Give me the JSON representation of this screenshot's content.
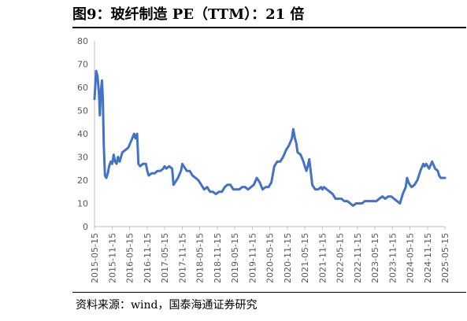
{
  "header": {
    "title": "图9：玻纤制造 PE（TTM）：21 倍"
  },
  "footer": {
    "source": "资料来源：wind，国泰海通证券研究"
  },
  "colors": {
    "line": "#4472c4",
    "axis": "#bfbfbf",
    "tick_text": "#595959"
  },
  "chart_data": {
    "type": "line",
    "title": "",
    "xlabel": "",
    "ylabel": "",
    "ylim": [
      0,
      80
    ],
    "yticks": [
      0,
      10,
      20,
      30,
      40,
      50,
      60,
      70,
      80
    ],
    "xlim": [
      "2015-05-15",
      "2025-05-15"
    ],
    "xticks": [
      "2015-05-15",
      "2015-11-15",
      "2016-05-15",
      "2016-11-15",
      "2017-05-15",
      "2017-11-15",
      "2018-05-15",
      "2018-11-15",
      "2019-05-15",
      "2019-11-15",
      "2020-05-15",
      "2020-11-15",
      "2021-05-15",
      "2021-11-15",
      "2022-05-15",
      "2022-11-15",
      "2023-05-15",
      "2023-11-15",
      "2024-05-15",
      "2024-11-15",
      "2025-05-15"
    ],
    "grid": false,
    "legend": "none",
    "series": [
      {
        "points": [
          [
            "2015-05-15",
            55
          ],
          [
            "2015-06-01",
            67
          ],
          [
            "2015-06-15",
            65
          ],
          [
            "2015-07-01",
            57
          ],
          [
            "2015-07-10",
            48
          ],
          [
            "2015-07-20",
            58
          ],
          [
            "2015-08-01",
            63
          ],
          [
            "2015-08-10",
            55
          ],
          [
            "2015-08-20",
            35
          ],
          [
            "2015-09-01",
            22
          ],
          [
            "2015-09-15",
            21
          ],
          [
            "2015-10-01",
            23
          ],
          [
            "2015-10-15",
            26
          ],
          [
            "2015-11-01",
            28
          ],
          [
            "2015-11-15",
            27
          ],
          [
            "2015-12-01",
            31
          ],
          [
            "2015-12-15",
            28
          ],
          [
            "2016-01-01",
            27
          ],
          [
            "2016-01-15",
            30
          ],
          [
            "2016-02-01",
            28
          ],
          [
            "2016-02-15",
            30
          ],
          [
            "2016-03-01",
            32
          ],
          [
            "2016-04-01",
            33
          ],
          [
            "2016-05-01",
            34
          ],
          [
            "2016-06-01",
            37
          ],
          [
            "2016-07-01",
            40
          ],
          [
            "2016-07-15",
            38
          ],
          [
            "2016-08-01",
            40
          ],
          [
            "2016-08-15",
            27
          ],
          [
            "2016-09-01",
            26
          ],
          [
            "2016-10-01",
            27
          ],
          [
            "2016-11-01",
            27
          ],
          [
            "2016-11-15",
            24
          ],
          [
            "2016-12-01",
            22
          ],
          [
            "2017-01-01",
            23
          ],
          [
            "2017-02-01",
            23
          ],
          [
            "2017-03-01",
            24
          ],
          [
            "2017-04-01",
            24
          ],
          [
            "2017-05-01",
            25
          ],
          [
            "2017-05-15",
            26
          ],
          [
            "2017-06-01",
            25
          ],
          [
            "2017-07-01",
            26
          ],
          [
            "2017-08-01",
            25
          ],
          [
            "2017-08-15",
            18
          ],
          [
            "2017-09-01",
            19
          ],
          [
            "2017-10-01",
            21
          ],
          [
            "2017-11-01",
            24
          ],
          [
            "2017-11-15",
            27
          ],
          [
            "2017-12-01",
            26
          ],
          [
            "2018-01-01",
            24
          ],
          [
            "2018-02-01",
            24
          ],
          [
            "2018-03-01",
            22
          ],
          [
            "2018-04-01",
            21
          ],
          [
            "2018-05-01",
            20
          ],
          [
            "2018-06-01",
            18
          ],
          [
            "2018-07-01",
            16
          ],
          [
            "2018-08-01",
            17
          ],
          [
            "2018-09-01",
            15
          ],
          [
            "2018-10-01",
            15
          ],
          [
            "2018-11-01",
            14
          ],
          [
            "2018-12-01",
            15
          ],
          [
            "2019-01-01",
            15
          ],
          [
            "2019-02-01",
            17
          ],
          [
            "2019-03-01",
            18
          ],
          [
            "2019-04-01",
            18
          ],
          [
            "2019-05-01",
            16
          ],
          [
            "2019-06-01",
            16
          ],
          [
            "2019-07-01",
            16
          ],
          [
            "2019-08-01",
            17
          ],
          [
            "2019-09-01",
            17
          ],
          [
            "2019-10-01",
            16
          ],
          [
            "2019-11-01",
            17
          ],
          [
            "2019-12-01",
            18
          ],
          [
            "2020-01-01",
            21
          ],
          [
            "2020-02-01",
            19
          ],
          [
            "2020-03-01",
            16
          ],
          [
            "2020-04-01",
            17
          ],
          [
            "2020-05-01",
            17
          ],
          [
            "2020-06-01",
            19
          ],
          [
            "2020-07-01",
            26
          ],
          [
            "2020-08-01",
            28
          ],
          [
            "2020-09-01",
            28
          ],
          [
            "2020-10-01",
            30
          ],
          [
            "2020-11-01",
            33
          ],
          [
            "2020-12-01",
            35
          ],
          [
            "2021-01-01",
            38
          ],
          [
            "2021-01-15",
            42
          ],
          [
            "2021-02-01",
            38
          ],
          [
            "2021-02-15",
            36
          ],
          [
            "2021-03-01",
            32
          ],
          [
            "2021-04-01",
            31
          ],
          [
            "2021-05-01",
            28
          ],
          [
            "2021-05-15",
            26
          ],
          [
            "2021-06-01",
            24
          ],
          [
            "2021-06-15",
            26
          ],
          [
            "2021-07-01",
            29
          ],
          [
            "2021-07-15",
            24
          ],
          [
            "2021-08-01",
            18
          ],
          [
            "2021-09-01",
            16
          ],
          [
            "2021-10-01",
            16
          ],
          [
            "2021-11-01",
            17
          ],
          [
            "2021-11-15",
            16
          ],
          [
            "2021-12-01",
            17
          ],
          [
            "2022-01-01",
            16
          ],
          [
            "2022-02-01",
            15
          ],
          [
            "2022-03-01",
            14
          ],
          [
            "2022-04-01",
            12
          ],
          [
            "2022-05-01",
            12
          ],
          [
            "2022-06-01",
            12
          ],
          [
            "2022-07-01",
            11
          ],
          [
            "2022-08-01",
            11
          ],
          [
            "2022-09-01",
            10
          ],
          [
            "2022-10-01",
            9
          ],
          [
            "2022-11-01",
            10
          ],
          [
            "2022-12-01",
            10
          ],
          [
            "2023-01-01",
            10
          ],
          [
            "2023-02-01",
            11
          ],
          [
            "2023-03-01",
            11
          ],
          [
            "2023-04-01",
            11
          ],
          [
            "2023-05-01",
            11
          ],
          [
            "2023-06-01",
            11
          ],
          [
            "2023-07-01",
            12
          ],
          [
            "2023-08-01",
            13
          ],
          [
            "2023-09-01",
            12
          ],
          [
            "2023-10-01",
            13
          ],
          [
            "2023-11-01",
            13
          ],
          [
            "2023-12-01",
            12
          ],
          [
            "2024-01-01",
            11
          ],
          [
            "2024-02-01",
            10
          ],
          [
            "2024-03-01",
            14
          ],
          [
            "2024-04-01",
            17
          ],
          [
            "2024-04-15",
            21
          ],
          [
            "2024-05-01",
            19
          ],
          [
            "2024-05-15",
            18
          ],
          [
            "2024-06-01",
            17
          ],
          [
            "2024-07-01",
            18
          ],
          [
            "2024-08-01",
            20
          ],
          [
            "2024-09-01",
            24
          ],
          [
            "2024-10-01",
            27
          ],
          [
            "2024-10-15",
            26
          ],
          [
            "2024-11-01",
            27
          ],
          [
            "2024-11-15",
            26
          ],
          [
            "2024-12-01",
            25
          ],
          [
            "2025-01-01",
            28
          ],
          [
            "2025-02-01",
            25
          ],
          [
            "2025-03-01",
            24
          ],
          [
            "2025-03-15",
            22
          ],
          [
            "2025-04-01",
            21
          ],
          [
            "2025-05-15",
            21
          ]
        ]
      }
    ]
  }
}
